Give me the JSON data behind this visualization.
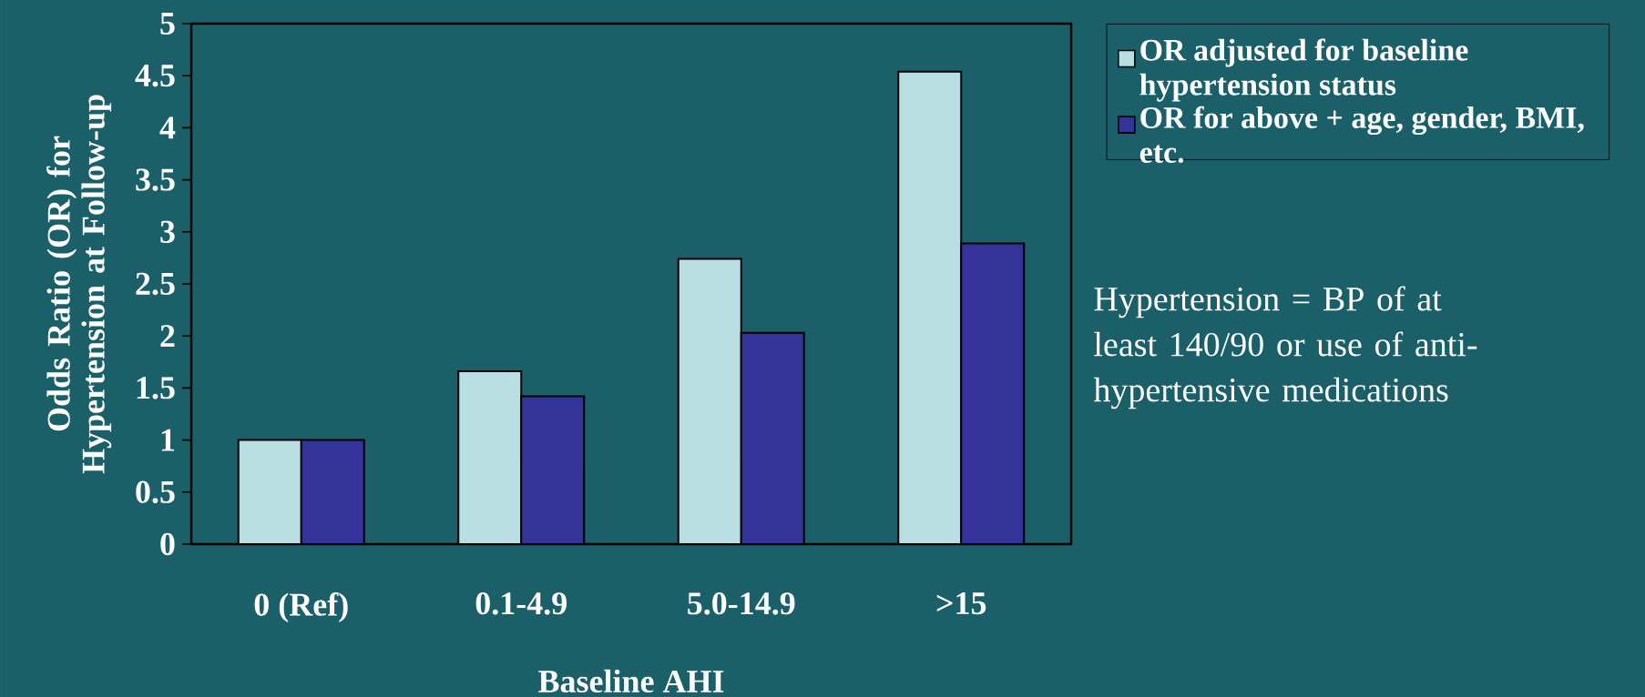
{
  "chart_data": {
    "type": "bar",
    "categories": [
      "0 (Ref)",
      "0.1-4.9",
      "5.0-14.9",
      ">15"
    ],
    "series": [
      {
        "name": "OR adjusted for baseline hypertension status",
        "color": "#b9dfe2",
        "values": [
          1.0,
          1.66,
          2.74,
          4.54
        ]
      },
      {
        "name": "OR for above + age, gender, BMI, etc.",
        "color": "#333399",
        "values": [
          1.0,
          1.42,
          2.03,
          2.89
        ]
      }
    ],
    "xlabel": "Baseline AHI",
    "ylabel": "Odds Ratio (OR) for Hypertension at Follow-up",
    "ylim": [
      0,
      5
    ],
    "yticks": [
      0,
      0.5,
      1,
      1.5,
      2,
      2.5,
      3,
      3.5,
      4,
      4.5,
      5
    ],
    "legend": "right",
    "annotations": [
      "Hypertension = BP of at least 140/90 or use of anti-hypertensive medications"
    ]
  }
}
